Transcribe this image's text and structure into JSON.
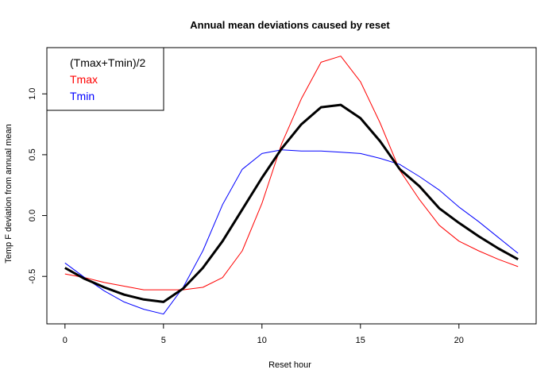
{
  "chart_data": {
    "type": "line",
    "title": "Annual mean deviations caused by reset",
    "xlabel": "Reset hour",
    "ylabel": "Temp F deviation from annual mean",
    "xlim": [
      -0.92,
      23.92
    ],
    "ylim": [
      -0.89,
      1.38
    ],
    "xticks": [
      0,
      5,
      10,
      15,
      20
    ],
    "yticks": [
      -0.5,
      0.0,
      0.5,
      1.0
    ],
    "xtick_labels": [
      "0",
      "5",
      "10",
      "15",
      "20"
    ],
    "ytick_labels": [
      "-0.5",
      "0.0",
      "0.5",
      "1.0"
    ],
    "grid": false,
    "legend_position": "top-left",
    "x": [
      0,
      1,
      2,
      3,
      4,
      5,
      6,
      7,
      8,
      9,
      10,
      11,
      12,
      13,
      14,
      15,
      16,
      17,
      18,
      19,
      20,
      21,
      22,
      23
    ],
    "series": [
      {
        "name": "(Tmax+Tmin)/2",
        "color": "#000000",
        "width": "thick",
        "values": [
          -0.43,
          -0.52,
          -0.59,
          -0.65,
          -0.69,
          -0.71,
          -0.6,
          -0.43,
          -0.21,
          0.05,
          0.31,
          0.55,
          0.75,
          0.89,
          0.91,
          0.8,
          0.61,
          0.38,
          0.24,
          0.06,
          -0.06,
          -0.17,
          -0.27,
          -0.36
        ]
      },
      {
        "name": "Tmax",
        "color": "#ff0000",
        "width": "thin",
        "values": [
          -0.48,
          -0.51,
          -0.55,
          -0.58,
          -0.61,
          -0.61,
          -0.61,
          -0.59,
          -0.51,
          -0.29,
          0.1,
          0.59,
          0.96,
          1.26,
          1.31,
          1.1,
          0.76,
          0.37,
          0.13,
          -0.08,
          -0.21,
          -0.29,
          -0.36,
          -0.42
        ]
      },
      {
        "name": "Tmin",
        "color": "#0000ff",
        "width": "thin",
        "values": [
          -0.39,
          -0.51,
          -0.62,
          -0.71,
          -0.77,
          -0.81,
          -0.59,
          -0.29,
          0.09,
          0.38,
          0.51,
          0.54,
          0.53,
          0.53,
          0.52,
          0.51,
          0.47,
          0.42,
          0.32,
          0.21,
          0.07,
          -0.05,
          -0.18,
          -0.31
        ]
      }
    ]
  }
}
